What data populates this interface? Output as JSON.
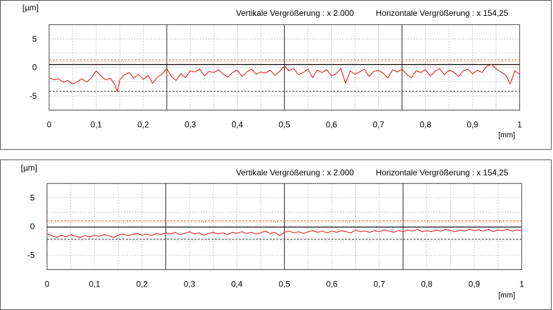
{
  "colors": {
    "profile": "#e02020",
    "limit_upper": "#e06a3a",
    "mean_line": "#000000",
    "limit_lower": "#333333",
    "grid_minor": "#b8b8b8",
    "grid_major": "#222222"
  },
  "chart_data": [
    {
      "type": "line",
      "title": "",
      "header_left": "Vertikale Vergrößerung : x 2.000",
      "header_right": "Horizontale Vergrößerung : x 154,25",
      "ylabel": "[µm]",
      "xlabel": "[mm]",
      "xlim": [
        0,
        1
      ],
      "ylim": [
        -7.5,
        7.5
      ],
      "x_ticks": [
        "0",
        "0,1",
        "0,2",
        "0,3",
        "0,4",
        "0,5",
        "0,6",
        "0,7",
        "0,8",
        "0,9",
        "1"
      ],
      "y_ticks": [
        "5",
        "0",
        "-5"
      ],
      "reference_lines": {
        "upper_limit": 1.3,
        "upper_limit2": 1.0,
        "mean": 0.5,
        "lower_limit": -4.2
      },
      "series": [
        {
          "x": [
            0,
            0.01,
            0.02,
            0.03,
            0.04,
            0.05,
            0.06,
            0.07,
            0.08,
            0.09,
            0.1,
            0.11,
            0.12,
            0.13,
            0.14,
            0.145,
            0.15,
            0.16,
            0.17,
            0.18,
            0.19,
            0.2,
            0.21,
            0.22,
            0.23,
            0.24,
            0.25,
            0.26,
            0.27,
            0.28,
            0.29,
            0.3,
            0.31,
            0.32,
            0.33,
            0.34,
            0.35,
            0.36,
            0.37,
            0.38,
            0.39,
            0.4,
            0.41,
            0.42,
            0.43,
            0.44,
            0.45,
            0.46,
            0.47,
            0.48,
            0.49,
            0.5,
            0.51,
            0.52,
            0.53,
            0.54,
            0.55,
            0.56,
            0.57,
            0.58,
            0.59,
            0.6,
            0.61,
            0.62,
            0.63,
            0.64,
            0.65,
            0.66,
            0.67,
            0.68,
            0.69,
            0.7,
            0.71,
            0.72,
            0.73,
            0.74,
            0.75,
            0.76,
            0.77,
            0.78,
            0.79,
            0.8,
            0.81,
            0.82,
            0.83,
            0.84,
            0.85,
            0.86,
            0.87,
            0.88,
            0.89,
            0.9,
            0.91,
            0.92,
            0.93,
            0.94,
            0.95,
            0.96,
            0.97,
            0.98,
            0.99,
            1
          ],
          "values": [
            -1.8,
            -2.2,
            -2.0,
            -2.6,
            -2.3,
            -2.9,
            -2.5,
            -2.0,
            -2.6,
            -1.8,
            -0.6,
            -1.5,
            -2.2,
            -1.9,
            -3.1,
            -4.3,
            -2.2,
            -1.3,
            -0.9,
            -1.9,
            -1.2,
            -2.1,
            -1.4,
            -2.8,
            -1.7,
            -1.2,
            -0.2,
            -1.6,
            -2.3,
            -1.1,
            -1.8,
            -0.6,
            -0.8,
            -0.3,
            -1.5,
            -0.7,
            -0.9,
            -0.4,
            -1.2,
            -1.7,
            -0.9,
            -0.5,
            -1.6,
            -0.8,
            -0.3,
            -1.2,
            -0.8,
            -1.0,
            -0.5,
            -1.4,
            -0.7,
            0.2,
            -0.6,
            -0.2,
            -1.3,
            -0.9,
            -0.3,
            -1.8,
            -0.5,
            -0.9,
            -0.4,
            -1.5,
            -1.1,
            -0.2,
            -2.8,
            -0.6,
            -1.2,
            -0.8,
            -0.3,
            -1.6,
            -0.7,
            -0.5,
            -1.0,
            -1.9,
            -0.4,
            -0.8,
            -0.3,
            -1.2,
            -1.8,
            -0.6,
            -0.9,
            -0.4,
            -1.5,
            -0.7,
            -0.2,
            -1.3,
            -0.5,
            -0.8,
            -1.6,
            -0.6,
            -0.3,
            -1.1,
            -0.5,
            -0.9,
            0.2,
            0.5,
            -0.2,
            -0.8,
            -1.3,
            -2.9,
            -0.6,
            -1.2
          ]
        }
      ]
    },
    {
      "type": "line",
      "title": "",
      "header_left": "Vertikale Vergrößerung : x 2.000",
      "header_right": "Horizontale Vergrößerung : x 154,25",
      "ylabel": "[µm]",
      "xlabel": "[mm]",
      "xlim": [
        0,
        1
      ],
      "ylim": [
        -7.5,
        7.5
      ],
      "x_ticks": [
        "0",
        "0,1",
        "0,2",
        "0,3",
        "0,4",
        "0,5",
        "0,6",
        "0,7",
        "0,8",
        "0,9",
        "1"
      ],
      "y_ticks": [
        "5",
        "0",
        "-5"
      ],
      "reference_lines": {
        "upper_limit": 1.0,
        "upper_limit2": 0.8,
        "mean": -0.1,
        "lower_limit": -2.2
      },
      "series": [
        {
          "x": [
            0,
            0.01,
            0.02,
            0.03,
            0.04,
            0.05,
            0.06,
            0.07,
            0.08,
            0.09,
            0.1,
            0.11,
            0.12,
            0.13,
            0.14,
            0.15,
            0.16,
            0.17,
            0.18,
            0.19,
            0.2,
            0.21,
            0.22,
            0.23,
            0.24,
            0.25,
            0.26,
            0.27,
            0.28,
            0.29,
            0.3,
            0.31,
            0.32,
            0.33,
            0.34,
            0.35,
            0.36,
            0.37,
            0.38,
            0.39,
            0.4,
            0.41,
            0.42,
            0.43,
            0.44,
            0.45,
            0.46,
            0.47,
            0.48,
            0.49,
            0.5,
            0.51,
            0.52,
            0.53,
            0.54,
            0.55,
            0.56,
            0.57,
            0.58,
            0.59,
            0.6,
            0.61,
            0.62,
            0.63,
            0.64,
            0.65,
            0.66,
            0.67,
            0.68,
            0.69,
            0.7,
            0.71,
            0.72,
            0.73,
            0.74,
            0.75,
            0.76,
            0.77,
            0.78,
            0.79,
            0.8,
            0.81,
            0.82,
            0.83,
            0.84,
            0.85,
            0.86,
            0.87,
            0.88,
            0.89,
            0.9,
            0.91,
            0.92,
            0.93,
            0.94,
            0.95,
            0.96,
            0.97,
            0.98,
            0.99,
            1
          ],
          "values": [
            -1.2,
            -1.6,
            -1.9,
            -1.5,
            -1.8,
            -1.4,
            -1.7,
            -1.9,
            -1.6,
            -1.8,
            -1.5,
            -1.7,
            -1.4,
            -1.6,
            -1.9,
            -1.5,
            -1.3,
            -1.6,
            -1.4,
            -1.2,
            -1.5,
            -1.3,
            -1.6,
            -1.2,
            -1.4,
            -1.1,
            -1.3,
            -1.0,
            -1.4,
            -1.2,
            -0.9,
            -1.3,
            -1.1,
            -1.5,
            -1.2,
            -1.0,
            -1.3,
            -1.1,
            -1.4,
            -1.0,
            -1.2,
            -0.9,
            -1.2,
            -1.0,
            -1.3,
            -1.1,
            -0.8,
            -1.2,
            -1.0,
            -1.6,
            -1.0,
            -0.8,
            -1.1,
            -0.9,
            -1.2,
            -0.9,
            -0.7,
            -1.0,
            -0.8,
            -1.1,
            -0.8,
            -1.0,
            -0.7,
            -0.9,
            -1.1,
            -0.6,
            -0.9,
            -0.8,
            -1.0,
            -0.7,
            -0.9,
            -0.6,
            -0.8,
            -1.0,
            -0.7,
            -0.9,
            -0.6,
            -0.8,
            -0.5,
            -0.9,
            -0.7,
            -0.9,
            -0.6,
            -0.8,
            -0.5,
            -0.7,
            -0.9,
            -0.6,
            -0.8,
            -0.5,
            -0.7,
            -0.6,
            -0.8,
            -0.5,
            -0.9,
            -0.6,
            -0.7,
            -0.5,
            -0.8,
            -0.6,
            -0.7
          ]
        }
      ]
    }
  ]
}
